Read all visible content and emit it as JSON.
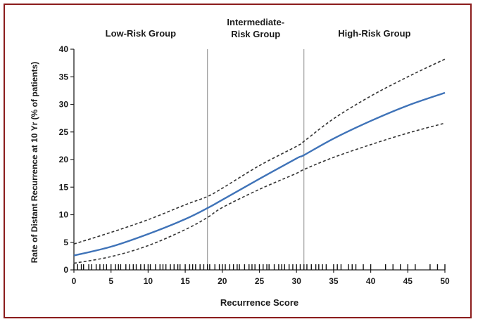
{
  "chart_data": {
    "type": "line",
    "xlabel": "Recurrence Score",
    "ylabel": "Rate of Distant Recurrence at 10 Yr (% of patients)",
    "xlim": [
      0,
      50
    ],
    "ylim": [
      0,
      40
    ],
    "x_ticks": [
      0,
      5,
      10,
      15,
      20,
      25,
      30,
      35,
      40,
      45,
      50
    ],
    "y_ticks": [
      0,
      5,
      10,
      15,
      20,
      25,
      30,
      35,
      40
    ],
    "grid": false,
    "region_boundaries": [
      18,
      31
    ],
    "group_labels": [
      {
        "lines": [
          "Low-Risk Group"
        ],
        "x": 9
      },
      {
        "lines": [
          "Intermediate-",
          "Risk Group"
        ],
        "x": 24.5
      },
      {
        "lines": [
          "High-Risk Group"
        ],
        "x": 40.5
      }
    ],
    "x": [
      0,
      5,
      10,
      15,
      18,
      20,
      25,
      30,
      31,
      35,
      40,
      45,
      50
    ],
    "series": [
      {
        "values": [
          2.6,
          4.2,
          6.5,
          9.2,
          11.2,
          12.7,
          16.5,
          20.2,
          20.8,
          23.8,
          27.0,
          29.8,
          32.1
        ],
        "style": "solid",
        "color": "#3f73b8"
      },
      {
        "values": [
          4.7,
          6.8,
          9.1,
          11.8,
          13.3,
          14.8,
          18.9,
          22.4,
          23.3,
          27.4,
          31.5,
          35.0,
          38.2
        ],
        "style": "dashed",
        "color": "#333333"
      },
      {
        "values": [
          1.2,
          2.4,
          4.4,
          7.3,
          9.5,
          11.3,
          14.6,
          17.5,
          18.2,
          20.4,
          22.7,
          24.8,
          26.6
        ],
        "style": "dashed",
        "color": "#333333"
      }
    ],
    "rug_x": [
      0,
      0.5,
      1,
      1.3,
      2,
      2.4,
      3,
      3.5,
      4,
      4.4,
      5,
      5.6,
      6,
      6.3,
      7,
      7.5,
      8,
      8.4,
      9,
      9.5,
      10,
      10.3,
      11,
      11.6,
      12,
      12.4,
      13,
      13.5,
      14,
      14.3,
      15,
      15.6,
      16,
      16.4,
      17,
      17.5,
      18,
      18.3,
      19,
      19.6,
      20,
      20.4,
      21,
      21.5,
      22,
      22.3,
      23,
      23.6,
      24,
      24.4,
      25,
      25.5,
      26,
      26.3,
      27,
      27.6,
      28,
      28.4,
      29,
      29.5,
      30,
      30.5,
      31,
      31.4,
      32,
      32.6,
      33,
      33.5,
      34,
      35,
      35.5,
      36,
      37,
      37.5,
      38,
      39,
      40,
      42,
      43,
      44,
      45,
      46,
      48,
      49,
      50
    ]
  }
}
